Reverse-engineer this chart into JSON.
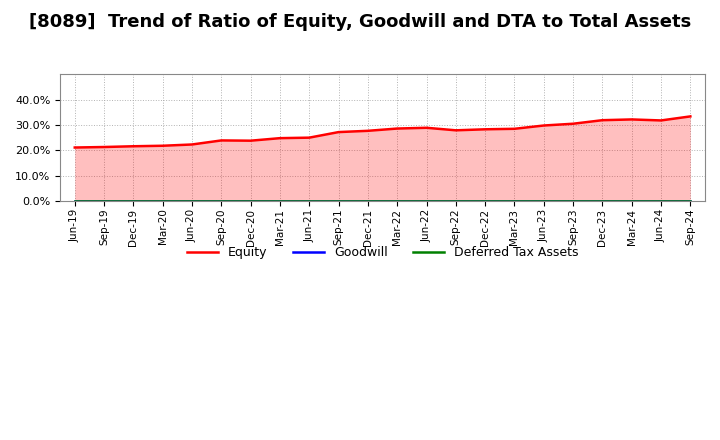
{
  "title": "[8089]  Trend of Ratio of Equity, Goodwill and DTA to Total Assets",
  "x_labels": [
    "Jun-19",
    "Sep-19",
    "Dec-19",
    "Mar-20",
    "Jun-20",
    "Sep-20",
    "Dec-20",
    "Mar-21",
    "Jun-21",
    "Sep-21",
    "Dec-21",
    "Mar-22",
    "Jun-22",
    "Sep-22",
    "Dec-22",
    "Mar-23",
    "Jun-23",
    "Sep-23",
    "Dec-23",
    "Mar-24",
    "Jun-24",
    "Sep-24"
  ],
  "equity": [
    0.211,
    0.213,
    0.216,
    0.218,
    0.223,
    0.239,
    0.238,
    0.248,
    0.25,
    0.272,
    0.277,
    0.286,
    0.289,
    0.279,
    0.283,
    0.285,
    0.298,
    0.305,
    0.319,
    0.322,
    0.318,
    0.334
  ],
  "goodwill": [
    0.0,
    0.0,
    0.0,
    0.0,
    0.0,
    0.0,
    0.0,
    0.0,
    0.0,
    0.0,
    0.0,
    0.0,
    0.0,
    0.0,
    0.0,
    0.0,
    0.0,
    0.0,
    0.0,
    0.0,
    0.0,
    0.0
  ],
  "dta": [
    0.0,
    0.0,
    0.0,
    0.0,
    0.0,
    0.0,
    0.0,
    0.0,
    0.0,
    0.0,
    0.0,
    0.0,
    0.0,
    0.0,
    0.0,
    0.0,
    0.0,
    0.0,
    0.0,
    0.0,
    0.0,
    0.0
  ],
  "equity_color": "#ff0000",
  "goodwill_color": "#0000ff",
  "dta_color": "#008000",
  "ylim": [
    0.0,
    0.5
  ],
  "yticks": [
    0.0,
    0.1,
    0.2,
    0.3,
    0.4
  ],
  "background_color": "#ffffff",
  "plot_bg_color": "#ffffff",
  "grid_color": "#aaaaaa",
  "title_fontsize": 13,
  "legend_labels": [
    "Equity",
    "Goodwill",
    "Deferred Tax Assets"
  ]
}
